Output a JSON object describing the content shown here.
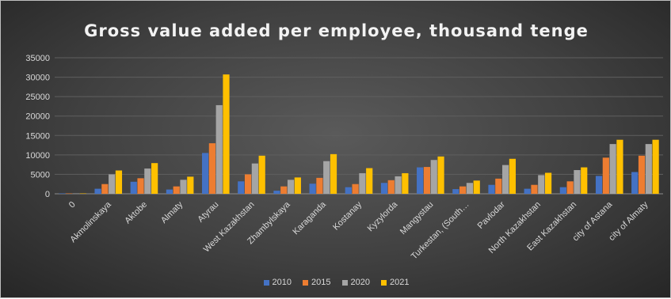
{
  "chart_data": {
    "type": "bar",
    "title": "Gross value added per employee, thousand tenge",
    "xlabel": "",
    "ylabel": "",
    "ylim": [
      0,
      35000
    ],
    "yticks": [
      "0",
      "5000",
      "10000",
      "15000",
      "20000",
      "25000",
      "30000",
      "35000"
    ],
    "grid": true,
    "legend_position": "bottom",
    "categories": [
      "0",
      "Akmolinskaya",
      "Aktobe",
      "Almaty",
      "Atyrau",
      "West Kazakhstan",
      "Zhambylskaya",
      "Karaganda",
      "Kostanay",
      "Kyzylorda",
      "Mangystau",
      "Turkestan, (South…",
      "Pavlodar",
      "North Kazakhstan",
      "East Kazakhstan",
      "city of Astana",
      "city of Almaty"
    ],
    "series": [
      {
        "name": "2010",
        "color": "#4472c4",
        "values": [
          100,
          1300,
          3100,
          1100,
          10500,
          3200,
          800,
          2600,
          1700,
          2800,
          6800,
          1200,
          2300,
          1300,
          1700,
          4600,
          5600
        ]
      },
      {
        "name": "2015",
        "color": "#ed7d31",
        "values": [
          100,
          2500,
          4000,
          1900,
          13000,
          5000,
          1900,
          4100,
          2500,
          3500,
          6900,
          1900,
          3900,
          2300,
          3200,
          9300,
          9800
        ]
      },
      {
        "name": "2020",
        "color": "#a5a5a5",
        "values": [
          100,
          5000,
          6500,
          3600,
          22800,
          7800,
          3600,
          8400,
          5300,
          4500,
          8700,
          2800,
          7400,
          4800,
          6100,
          12800,
          12800
        ]
      },
      {
        "name": "2021",
        "color": "#ffc000",
        "values": [
          100,
          6000,
          7900,
          4400,
          30700,
          9800,
          4200,
          10200,
          6600,
          5300,
          9600,
          3400,
          9000,
          5400,
          6800,
          13900,
          13900
        ]
      }
    ]
  }
}
